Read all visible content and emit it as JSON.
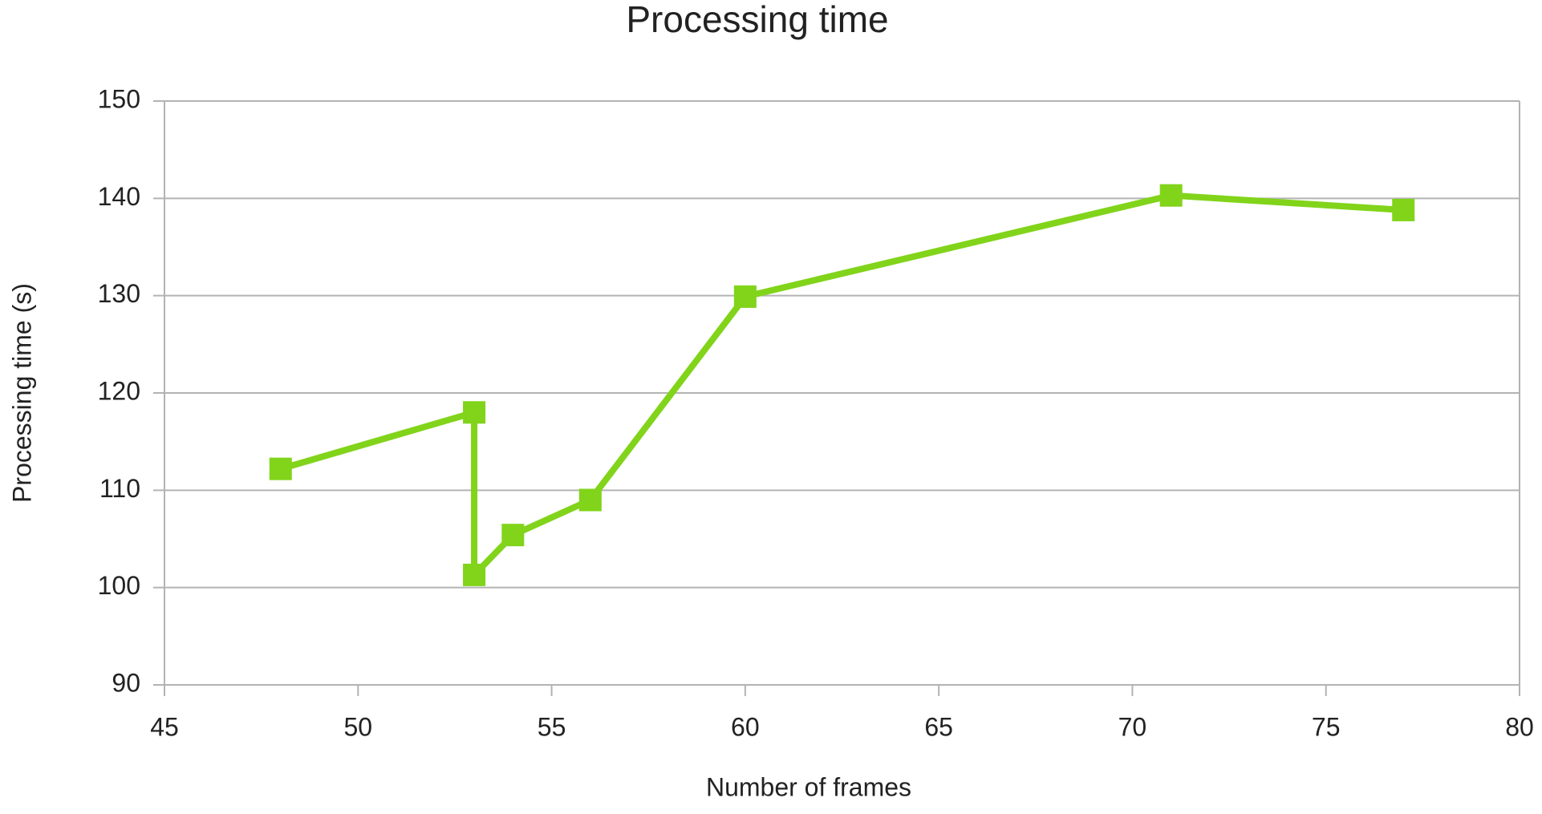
{
  "chart_data": {
    "type": "line",
    "title": "Processing time",
    "x_label": "Number of frames",
    "y_label": "Processing time (s)",
    "x": [
      48,
      53,
      53,
      54,
      56,
      60,
      71,
      77
    ],
    "values": [
      112.2,
      118,
      101.3,
      105.4,
      109,
      129.9,
      140.3,
      138.8
    ],
    "color": "#81d41a",
    "xlim": [
      45,
      80
    ],
    "xticks": [
      45,
      50,
      55,
      60,
      65,
      70,
      75,
      80
    ],
    "ylim": [
      90,
      150
    ],
    "yticks": [
      90,
      100,
      110,
      120,
      130,
      140,
      150
    ],
    "grid": true
  }
}
